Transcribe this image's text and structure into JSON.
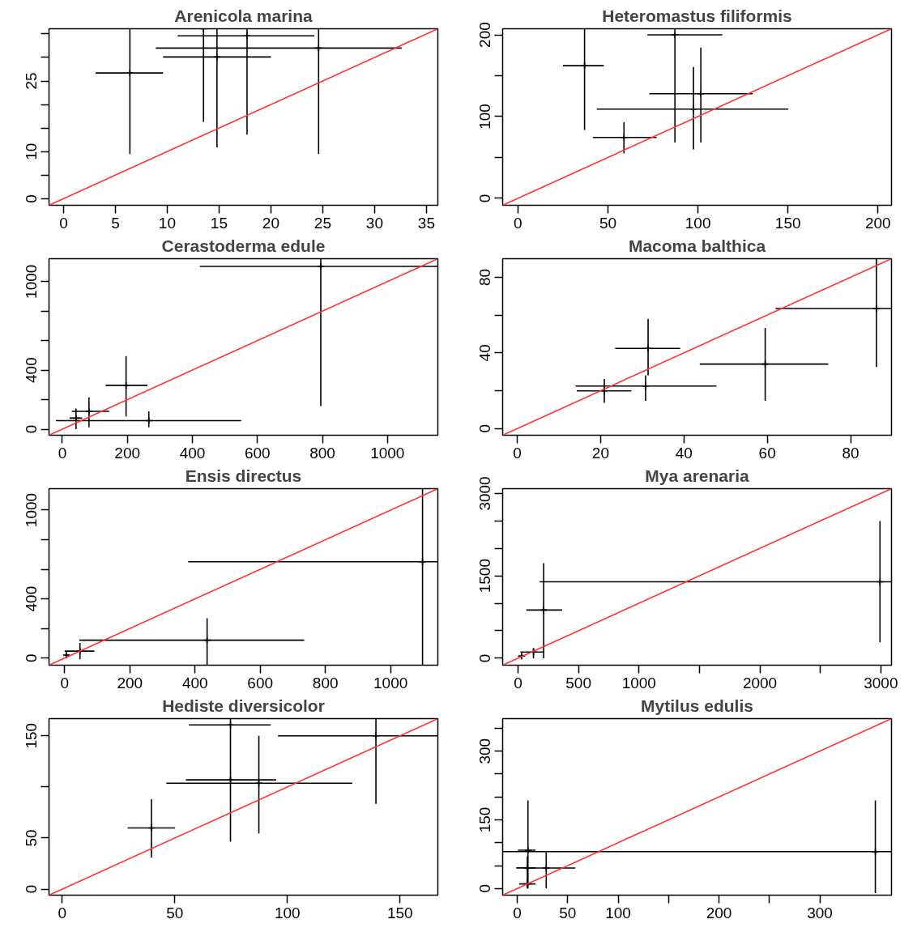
{
  "chart_data": [
    {
      "type": "scatter",
      "title": "Arenicola marina",
      "xlim": [
        -1.4,
        36.1
      ],
      "ylim": [
        -1.4,
        36.1
      ],
      "grid": false,
      "xticks": [
        0,
        5,
        10,
        15,
        20,
        25,
        30,
        35
      ],
      "yticks": [
        0,
        {
          "value": 5,
          "label": null
        },
        10,
        {
          "value": 15,
          "label": null
        },
        {
          "value": 20,
          "label": null
        },
        25,
        {
          "value": 30,
          "label": null
        },
        {
          "value": 35,
          "label": null
        }
      ],
      "series": [
        {
          "marker": "cross",
          "color": "#000000",
          "x": [
            6.4,
            13.5,
            14.8,
            17.7,
            24.6
          ],
          "values": [
            26.7,
            36.1,
            30.1,
            34.6,
            32.0
          ],
          "errors": [
            [
              9.5,
              36.1
            ],
            [
              16.3,
              36.1
            ],
            [
              10.9,
              36.1
            ],
            [
              13.6,
              36.1
            ],
            [
              9.5,
              36.1
            ]
          ],
          "xerrors": [
            [
              3.1,
              9.6
            ],
            null,
            [
              9.6,
              20.0
            ],
            [
              11.0,
              24.2
            ],
            [
              8.9,
              32.6
            ]
          ]
        },
        {
          "type": "line",
          "color": "#ff3333",
          "x": [
            -1.4,
            36.1
          ],
          "values": [
            -1.4,
            36.1
          ]
        }
      ]
    },
    {
      "type": "scatter",
      "title": "Heteromastus filiformis",
      "xlim": [
        -8.5,
        207.5
      ],
      "ylim": [
        -8.5,
        207.5
      ],
      "grid": false,
      "xticks": [
        0,
        50,
        100,
        150,
        200
      ],
      "yticks": [
        0,
        {
          "value": 50,
          "label": null
        },
        100,
        {
          "value": 150,
          "label": null
        },
        200
      ],
      "series": [
        {
          "marker": "cross",
          "color": "#000000",
          "x": [
            37.0,
            58.9,
            87.2,
            101.6,
            97.5
          ],
          "values": [
            162.3,
            74.5,
            200,
            128,
            109.2
          ],
          "errors": [
            [
              83.7,
              207.5
            ],
            [
              54.8,
              93.3
            ],
            [
              68.2,
              207.5
            ],
            [
              68.2,
              184.5
            ],
            [
              59.8,
              160.7
            ]
          ],
          "xerrors": [
            [
              25.0,
              47.7
            ],
            [
              41.6,
              77.0
            ],
            [
              71.9,
              113.5
            ],
            [
              73.0,
              130.4
            ],
            [
              43.8,
              150.2
            ]
          ]
        },
        {
          "type": "line",
          "color": "#ff3333",
          "x": [
            -8.5,
            207.5
          ],
          "values": [
            -8.5,
            207.5
          ]
        }
      ]
    },
    {
      "type": "scatter",
      "title": "Cerastoderma edule",
      "xlim": [
        -41,
        1155
      ],
      "ylim": [
        -41,
        1155
      ],
      "grid": false,
      "xticks": [
        0,
        200,
        400,
        600,
        800,
        1000
      ],
      "yticks": [
        0,
        {
          "value": 200,
          "label": null
        },
        400,
        {
          "value": 600,
          "label": null
        },
        {
          "value": 800,
          "label": null
        },
        1000
      ],
      "series": [
        {
          "marker": "cross",
          "color": "#000000",
          "x": [
            795,
            196,
            82,
            266,
            42
          ],
          "values": [
            1103,
            297,
            121,
            58,
            75
          ],
          "errors": [
            [
              157,
              1155
            ],
            [
              86,
              495
            ],
            [
              12,
              215
            ],
            [
              12,
              121
            ],
            [
              0,
              140
            ]
          ],
          "xerrors": [
            [
              423,
              1155
            ],
            [
              133,
              262
            ],
            [
              29,
              144
            ],
            [
              -20,
              550
            ],
            [
              22,
              61
            ]
          ]
        },
        {
          "type": "line",
          "color": "#ff3333",
          "x": [
            -41,
            1155
          ],
          "values": [
            -41,
            1155
          ]
        }
      ]
    },
    {
      "type": "scatter",
      "title": "Macoma balthica",
      "xlim": [
        -3.5,
        89.8
      ],
      "ylim": [
        -3.5,
        89.8
      ],
      "grid": false,
      "xticks": [
        0,
        20,
        40,
        60,
        80
      ],
      "yticks": [
        0,
        {
          "value": 20,
          "label": null
        },
        40,
        {
          "value": 60,
          "label": null
        },
        80
      ],
      "series": [
        {
          "marker": "cross",
          "color": "#000000",
          "x": [
            86.2,
            31.4,
            59.5,
            20.9,
            30.8
          ],
          "values": [
            63.5,
            42.4,
            34.1,
            19.9,
            22.5
          ],
          "errors": [
            [
              32.6,
              89.8
            ],
            [
              28.2,
              58
            ],
            [
              14.7,
              53.2
            ],
            [
              13.6,
              26.2
            ],
            [
              14.7,
              28.2
            ]
          ],
          "xerrors": [
            [
              62.0,
              89.8
            ],
            [
              23.5,
              39.1
            ],
            [
              43.8,
              74.6
            ],
            [
              14.3,
              27.4
            ],
            [
              14.0,
              47.8
            ]
          ]
        },
        {
          "type": "line",
          "color": "#ff3333",
          "x": [
            -3.5,
            89.8
          ],
          "values": [
            -3.5,
            89.8
          ]
        }
      ]
    },
    {
      "type": "scatter",
      "title": "Ensis directus",
      "xlim": [
        -48,
        1145
      ],
      "ylim": [
        -48,
        1145
      ],
      "grid": false,
      "xticks": [
        0,
        200,
        400,
        600,
        800,
        1000
      ],
      "yticks": [
        0,
        {
          "value": 200,
          "label": null
        },
        400,
        {
          "value": 600,
          "label": null
        },
        {
          "value": 800,
          "label": null
        },
        1000
      ],
      "series": [
        {
          "marker": "cross",
          "color": "#000000",
          "x": [
            1098,
            437,
            47,
            5
          ],
          "values": [
            651,
            121,
            47,
            20
          ],
          "errors": [
            [
              -48,
              1145
            ],
            [
              -47,
              270
            ],
            [
              -9,
              102
            ],
            [
              5,
              35
            ]
          ],
          "xerrors": [
            [
              379,
              1145
            ],
            [
              45,
              735
            ],
            [
              0,
              91
            ],
            [
              0,
              15
            ]
          ]
        },
        {
          "type": "line",
          "color": "#ff3333",
          "x": [
            -48,
            1145
          ],
          "values": [
            -48,
            1145
          ]
        }
      ]
    },
    {
      "type": "scatter",
      "title": "Mya arenaria",
      "xlim": [
        -127,
        3088
      ],
      "ylim": [
        -127,
        3088
      ],
      "grid": false,
      "xticks": [
        0,
        500,
        1000,
        {
          "value": 1500,
          "label": null
        },
        2000,
        {
          "value": 2500,
          "label": null
        },
        3000
      ],
      "yticks": [
        0,
        {
          "value": 500,
          "label": null
        },
        {
          "value": 1000,
          "label": null
        },
        1500,
        {
          "value": 2000,
          "label": null
        },
        {
          "value": 2500,
          "label": null
        },
        3000
      ],
      "series": [
        {
          "marker": "cross",
          "color": "#000000",
          "x": [
            2993,
            212,
            128,
            30
          ],
          "values": [
            1393,
            878,
            113,
            40
          ],
          "errors": [
            [
              289,
              2497
            ],
            [
              0,
              1731
            ],
            [
              0,
              188
            ],
            [
              0,
              80
            ]
          ],
          "xerrors": [
            [
              178,
              3088
            ],
            [
              69,
              365
            ],
            [
              20,
              217
            ],
            [
              0,
              60
            ]
          ]
        },
        {
          "type": "line",
          "color": "#ff3333",
          "x": [
            -127,
            3088
          ],
          "values": [
            -127,
            3088
          ]
        }
      ]
    },
    {
      "type": "scatter",
      "title": "Hediste diversicolor",
      "xlim": [
        -5.9,
        166.8
      ],
      "ylim": [
        -5.9,
        166.8
      ],
      "grid": false,
      "xticks": [
        0,
        50,
        100,
        150
      ],
      "yticks": [
        0,
        50,
        {
          "value": 100,
          "label": null
        },
        150
      ],
      "series": [
        {
          "marker": "cross",
          "color": "#000000",
          "x": [
            139.3,
            74.7,
            74.7,
            87.3,
            39.6
          ],
          "values": [
            150,
            160.7,
            106.9,
            103.6,
            59.9
          ],
          "errors": [
            [
              83.4,
              166.8
            ],
            null,
            [
              46.4,
              166.8
            ],
            [
              54.5,
              150
            ],
            [
              31,
              88
            ]
          ],
          "xerrors": [
            [
              95.8,
              166.8
            ],
            [
              56.2,
              92.6
            ],
            [
              54.9,
              95
            ],
            [
              46.2,
              128.8
            ],
            [
              29,
              50.1
            ]
          ]
        },
        {
          "type": "line",
          "color": "#ff3333",
          "x": [
            -5.9,
            166.8
          ],
          "values": [
            -5.9,
            166.8
          ]
        }
      ]
    },
    {
      "type": "scatter",
      "title": "Mytilus edulis",
      "xlim": [
        -14.5,
        371
      ],
      "ylim": [
        -14.5,
        371
      ],
      "grid": false,
      "xticks": [
        0,
        50,
        100,
        {
          "value": 150,
          "label": null
        },
        200,
        {
          "value": 250,
          "label": null
        },
        300
      ],
      "yticks": [
        0,
        {
          "value": 50,
          "label": null
        },
        {
          "value": 100,
          "label": null
        },
        150,
        {
          "value": 200,
          "label": null
        },
        {
          "value": 250,
          "label": null
        },
        300,
        {
          "value": 350,
          "label": null
        }
      ],
      "series": [
        {
          "marker": "cross",
          "color": "#000000",
          "x": [
            355,
            10.6,
            28.7,
            10,
            10
          ],
          "values": [
            80.6,
            83.6,
            44.8,
            45,
            10
          ],
          "errors": [
            [
              -10,
              192.5
            ],
            [
              0,
              192.5
            ],
            [
              0,
              79
            ],
            [
              5,
              70
            ],
            [
              0,
              20
            ]
          ],
          "xerrors": [
            [
              -14.5,
              371
            ],
            [
              0.6,
              18
            ],
            [
              9.4,
              57.5
            ],
            [
              -1,
              18
            ],
            [
              2,
              18
            ]
          ]
        },
        {
          "type": "line",
          "color": "#ff3333",
          "x": [
            -14.5,
            371
          ],
          "values": [
            -14.5,
            371
          ]
        }
      ]
    }
  ]
}
